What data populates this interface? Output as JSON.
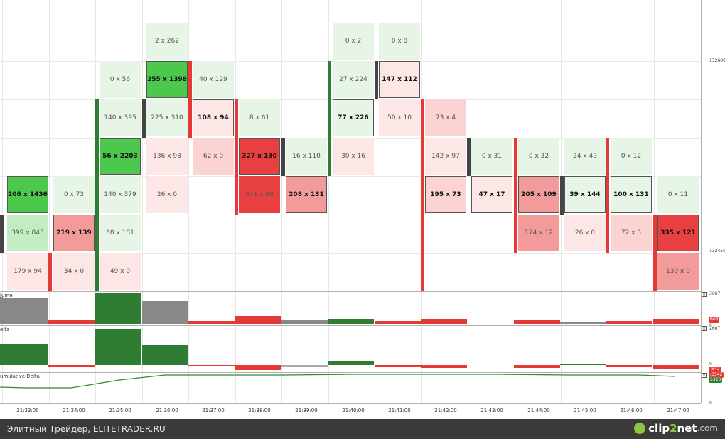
{
  "chart": {
    "price_labels": [
      "132600",
      "132450"
    ],
    "panels": {
      "volume": {
        "label": "lume",
        "scale_top": "3667",
        "scale_zero": "0",
        "badge": "606"
      },
      "delta": {
        "label": "elta",
        "scale_top": "2607",
        "scale_zero": "0",
        "badge": "-542"
      },
      "cumulative": {
        "label": "umulative Delta",
        "scale_zero": "0",
        "badges": [
          "-3542",
          "5320"
        ]
      }
    },
    "time_labels": [
      "21:33:00",
      "21:34:00",
      "21:35:00",
      "21:36:00",
      "21:37:00",
      "21:38:00",
      "21:39:00",
      "21:40:00",
      "21:41:00",
      "21:42:00",
      "21:43:00",
      "21:44:00",
      "21:45:00",
      "21:46:00",
      "21:47:00"
    ],
    "close_icon": "×",
    "cells": [
      {
        "t": "2 x 262"
      },
      {
        "t": "0 x 2"
      },
      {
        "t": "0 x 8"
      },
      {
        "t": "0 x 56"
      },
      {
        "t": "255 x 1398"
      },
      {
        "t": "40 x 129"
      },
      {
        "t": "27 x 224"
      },
      {
        "t": "147 x 112"
      },
      {
        "t": "140 x 395"
      },
      {
        "t": "225 x 310"
      },
      {
        "t": "108 x 94"
      },
      {
        "t": "8 x 61"
      },
      {
        "t": "77 x 226"
      },
      {
        "t": "50 x 10"
      },
      {
        "t": "73 x 4"
      },
      {
        "t": "56 x 2203"
      },
      {
        "t": "136 x 98"
      },
      {
        "t": "62 x 0"
      },
      {
        "t": "327 x 130"
      },
      {
        "t": "16 x 110"
      },
      {
        "t": "30 x 16"
      },
      {
        "t": "142 x 97"
      },
      {
        "t": "0 x 31"
      },
      {
        "t": "0 x 32"
      },
      {
        "t": "24 x 49"
      },
      {
        "t": "0 x 12"
      },
      {
        "t": "206 x 1436"
      },
      {
        "t": "0 x 73"
      },
      {
        "t": "140 x 379"
      },
      {
        "t": "26 x 0"
      },
      {
        "t": "341 x 89"
      },
      {
        "t": "208 x 131"
      },
      {
        "t": "195 x 73"
      },
      {
        "t": "47 x 17"
      },
      {
        "t": "205 x 109"
      },
      {
        "t": "39 x 144"
      },
      {
        "t": "100 x 131"
      },
      {
        "t": "0 x 11"
      },
      {
        "t": "399 x 843"
      },
      {
        "t": "219 x 139"
      },
      {
        "t": "68 x 181"
      },
      {
        "t": "174 x 12"
      },
      {
        "t": "26 x 0"
      },
      {
        "t": "72 x 3"
      },
      {
        "t": "335 x 121"
      },
      {
        "t": "179 x 94"
      },
      {
        "t": "34 x 0"
      },
      {
        "t": "49 x 0"
      },
      {
        "t": "139 x 0"
      }
    ],
    "colors": {
      "buy": "#2e7d32",
      "sell": "#e53935",
      "neutral": "#888888",
      "strong_green": "#4cc94c",
      "light_green": "#e6f5e6",
      "mid_green": "#c3ecc3",
      "strong_red": "#e84040",
      "mid_red": "#f39a9a",
      "light_red": "#fbd3d3",
      "pale_red": "#fde6e6"
    }
  },
  "footer": {
    "text": "Элитный Трейдер, ELITETRADER.RU",
    "logo_pre": "clip",
    "logo_mid": "2",
    "logo_post": "net",
    "logo_suffix": ".com"
  }
}
